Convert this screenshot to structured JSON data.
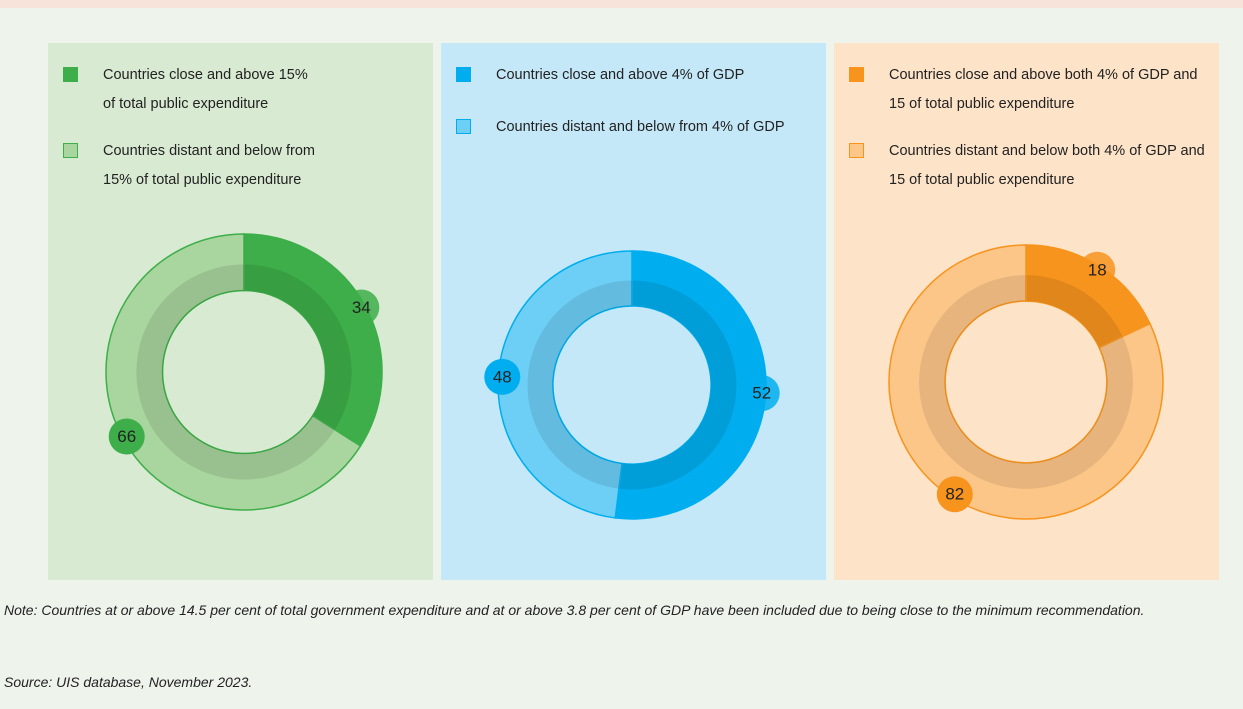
{
  "chart_data": [
    {
      "type": "pie",
      "categories": [
        "Countries close and above 15% of total public expenditure",
        "Countries distant and below from 15% of total public expenditure"
      ],
      "values": [
        34,
        66
      ],
      "colors": [
        "#3dae49",
        "#a9d59f"
      ]
    },
    {
      "type": "pie",
      "categories": [
        "Countries close and above 4% of GDP",
        "Countries distant and below from 4% of GDP"
      ],
      "values": [
        52,
        48
      ],
      "colors": [
        "#00aeef",
        "#6dcff6"
      ]
    },
    {
      "type": "pie",
      "categories": [
        "Countries close and above both 4% of GDP and 15 of total public expenditure",
        "Countries distant and below both 4% of GDP and 15 of total public expenditure"
      ],
      "values": [
        18,
        82
      ],
      "colors": [
        "#f7941d",
        "#fdc689"
      ]
    }
  ],
  "note": "Note: Countries at or above 14.5 per cent of total government expenditure and at or above 3.8 per cent of GDP have been included due to being close to the minimum recommendation.",
  "source": "Source: UIS database, November 2023."
}
